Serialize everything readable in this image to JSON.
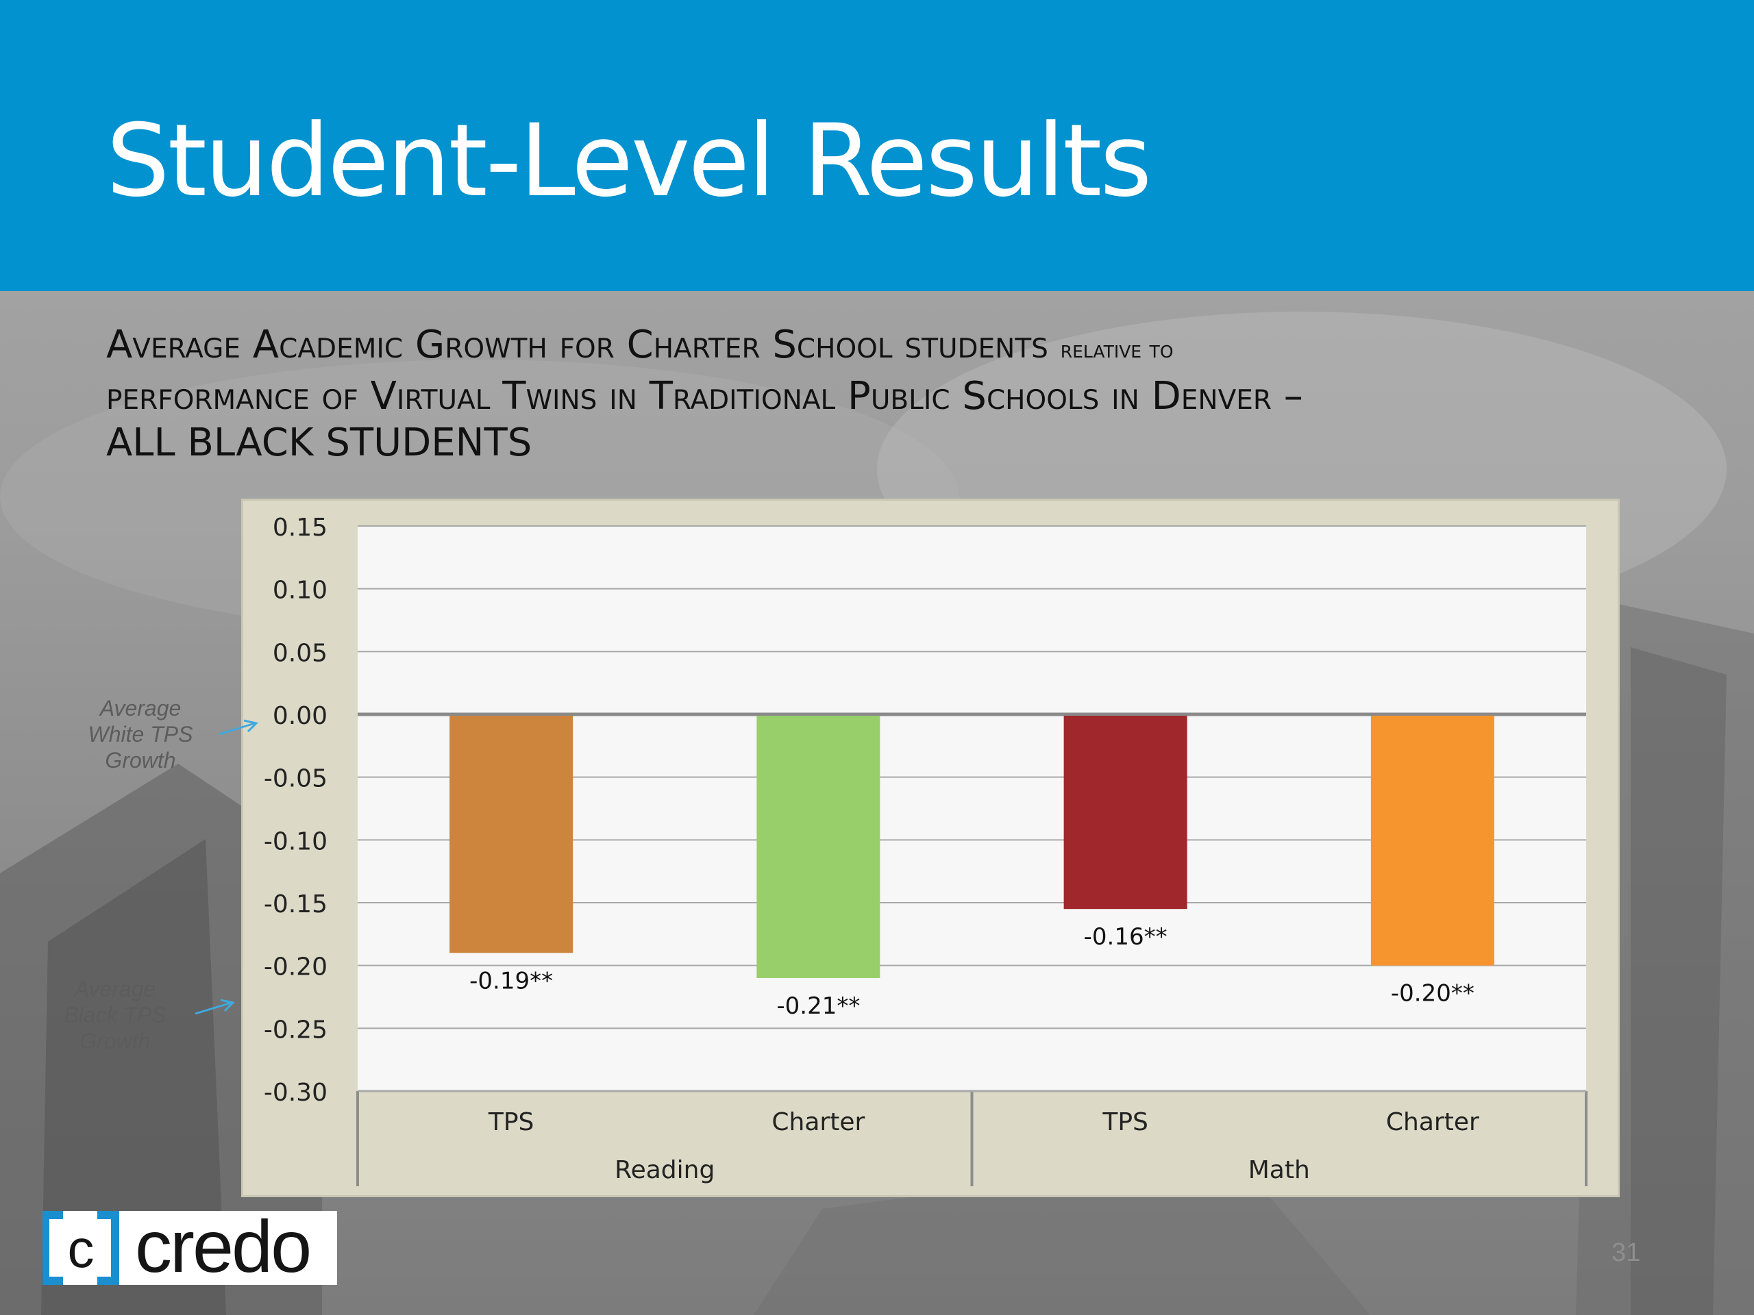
{
  "slide": {
    "title": "Student-Level Results",
    "page_number": "31"
  },
  "chart_title_parts": {
    "line1_a": "Average Academic Growth for Charter School students",
    "line1_b": "relative to",
    "line2": "performance of Virtual Twins in Traditional Public Schools in Denver –",
    "line3": "ALL BLACK STUDENTS"
  },
  "annotations": {
    "white_tps": [
      "Average",
      "White TPS",
      "Growth"
    ],
    "black_tps": [
      "Average",
      "Black TPS",
      "Growth"
    ]
  },
  "logo": {
    "text": "credo"
  },
  "colors": {
    "header": "#0192cf",
    "bar_reading_tps": "#cd843c",
    "bar_reading_charter": "#98cf6b",
    "bar_math_tps": "#a0272b",
    "bar_math_charter": "#f6952d",
    "arrow": "#3fa9e0"
  },
  "chart_data": {
    "type": "bar",
    "groups": [
      "Reading",
      "Math"
    ],
    "categories": [
      "TPS",
      "Charter",
      "TPS",
      "Charter"
    ],
    "values": [
      -0.19,
      -0.21,
      -0.155,
      -0.2
    ],
    "data_labels": [
      "-0.19**",
      "-0.21**",
      "-0.16**",
      "-0.20**"
    ],
    "bar_colors": [
      "#cd843c",
      "#98cf6b",
      "#a0272b",
      "#f6952d"
    ],
    "ylim": [
      -0.3,
      0.15
    ],
    "yticks": [
      "0.15",
      "0.10",
      "0.05",
      "0.00",
      "-0.05",
      "-0.10",
      "-0.15",
      "-0.20",
      "-0.25",
      "-0.30"
    ],
    "grid": true,
    "legend": "none"
  }
}
